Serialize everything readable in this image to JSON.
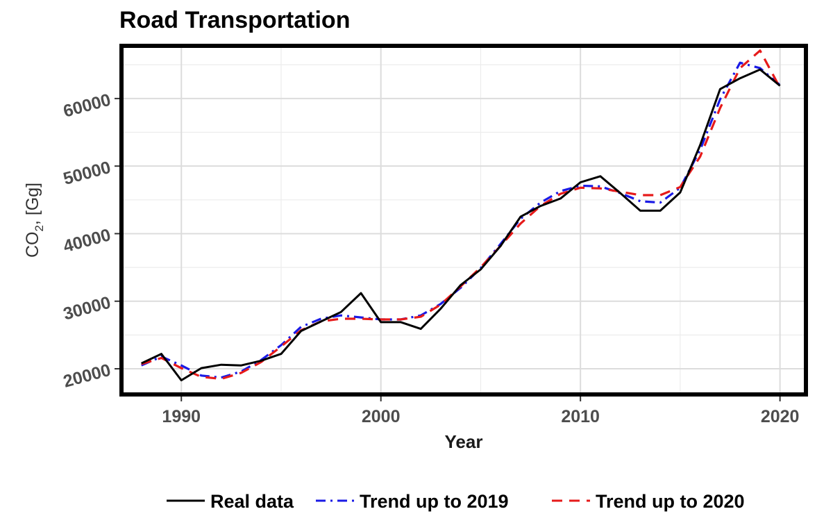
{
  "chart_data": {
    "type": "line",
    "title": "Road Transportation",
    "xlabel": "Year",
    "ylabel": "CO₂, [Gg]",
    "ylabel_parts": {
      "prefix": "CO",
      "subscript": "2",
      "suffix": ", [Gg]"
    },
    "xlim": [
      1987,
      2021.3
    ],
    "ylim": [
      16200,
      67800
    ],
    "x_ticks": [
      1990,
      2000,
      2010,
      2020
    ],
    "x_tick_labels": [
      "1990",
      "2000",
      "2010",
      "2020"
    ],
    "y_ticks": [
      20000,
      30000,
      40000,
      50000,
      60000
    ],
    "y_tick_labels": [
      "20000",
      "30000",
      "40000",
      "50000",
      "60000"
    ],
    "grid": true,
    "legend_position": "bottom",
    "series": [
      {
        "name": "Real data",
        "color": "#000000",
        "style": "solid",
        "x": [
          1988,
          1989,
          1990,
          1991,
          1992,
          1993,
          1994,
          1995,
          1996,
          1997,
          1998,
          1999,
          2000,
          2001,
          2002,
          2003,
          2004,
          2005,
          2006,
          2007,
          2008,
          2009,
          2010,
          2011,
          2012,
          2013,
          2014,
          2015,
          2016,
          2017,
          2018,
          2019,
          2020
        ],
        "y": [
          20800,
          22200,
          18300,
          20100,
          20600,
          20500,
          21200,
          22200,
          25600,
          27000,
          28400,
          31200,
          26900,
          26900,
          25900,
          28900,
          32400,
          34700,
          38200,
          42500,
          44100,
          45200,
          47600,
          48500,
          46000,
          43400,
          43400,
          46100,
          53100,
          61400,
          63000,
          64300,
          61900
        ]
      },
      {
        "name": "Trend up to 2019",
        "color": "#1a1ae6",
        "style": "dashdot",
        "x": [
          1988,
          1989,
          1990,
          1991,
          1992,
          1993,
          1994,
          1995,
          1996,
          1997,
          1998,
          1999,
          2000,
          2001,
          2002,
          2003,
          2004,
          2005,
          2006,
          2007,
          2008,
          2009,
          2010,
          2011,
          2012,
          2013,
          2014,
          2015,
          2016,
          2017,
          2018,
          2019,
          2020
        ],
        "y": [
          20500,
          21800,
          20500,
          19000,
          18700,
          19600,
          21300,
          23500,
          26200,
          27400,
          27900,
          27600,
          27300,
          27300,
          27900,
          29600,
          32000,
          34900,
          38500,
          42200,
          44600,
          46300,
          47100,
          47000,
          46000,
          44800,
          44600,
          46800,
          52400,
          59900,
          65300,
          64500,
          62000
        ]
      },
      {
        "name": "Trend up to 2020",
        "color": "#e61a1a",
        "style": "dashed",
        "x": [
          1988,
          1989,
          1990,
          1991,
          1992,
          1993,
          1994,
          1995,
          1996,
          1997,
          1998,
          1999,
          2000,
          2001,
          2002,
          2003,
          2004,
          2005,
          2006,
          2007,
          2008,
          2009,
          2010,
          2011,
          2012,
          2013,
          2014,
          2015,
          2016,
          2017,
          2018,
          2019,
          2020
        ],
        "y": [
          20700,
          21600,
          20100,
          18800,
          18500,
          19400,
          21000,
          23300,
          25700,
          27000,
          27400,
          27400,
          27300,
          27300,
          27700,
          29500,
          32200,
          35000,
          38200,
          41500,
          44100,
          45900,
          46800,
          46700,
          46200,
          45700,
          45700,
          46900,
          51400,
          58600,
          64500,
          67100,
          61600
        ]
      }
    ]
  }
}
